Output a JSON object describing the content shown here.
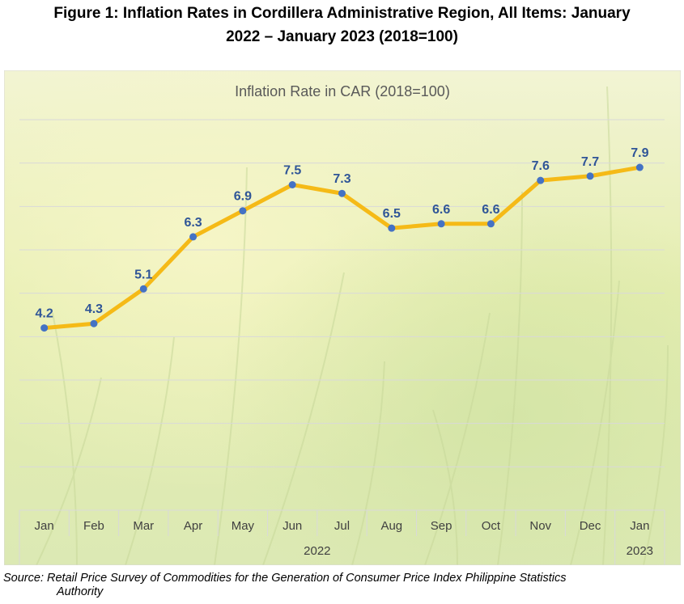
{
  "figure": {
    "title_line1": "Figure 1: Inflation Rates in Cordillera Administrative Region, All Items: January",
    "title_line2": "2022 – January 2023 (2018=100)"
  },
  "source": {
    "line1": "Source: Retail Price Survey of Commodities for the Generation of Consumer Price Index Philippine Statistics",
    "line2": "Authority"
  },
  "chart_data": {
    "type": "line",
    "title": "Inflation Rate in CAR (2018=100)",
    "categories": [
      "Jan",
      "Feb",
      "Mar",
      "Apr",
      "May",
      "Jun",
      "Jul",
      "Aug",
      "Sep",
      "Oct",
      "Nov",
      "Dec",
      "Jan"
    ],
    "year_groups": [
      {
        "label": "2022",
        "count": 12
      },
      {
        "label": "2023",
        "count": 1
      }
    ],
    "series": [
      {
        "values": [
          4.2,
          4.3,
          5.1,
          6.3,
          6.9,
          7.5,
          7.3,
          6.5,
          6.6,
          6.6,
          7.6,
          7.7,
          7.9
        ]
      }
    ],
    "data_labels": [
      "4.2",
      "4.3",
      "5.1",
      "6.3",
      "6.9",
      "7.5",
      "7.3",
      "6.5",
      "6.6",
      "6.6",
      "7.6",
      "7.7",
      "7.9"
    ],
    "ylim": [
      0,
      9
    ],
    "grid": true,
    "legend": "none",
    "colors": {
      "line": "#F5BA17",
      "marker": "#4472C4",
      "label": "#2F5597"
    }
  }
}
